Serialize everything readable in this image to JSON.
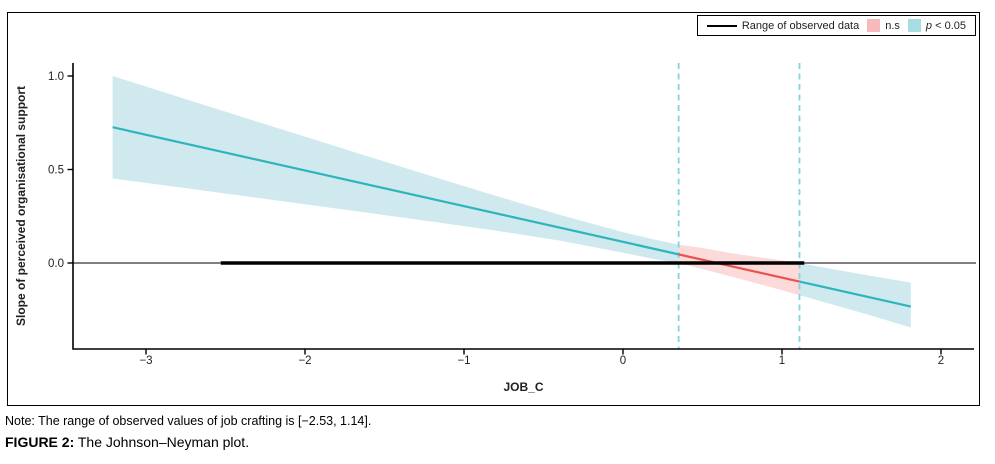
{
  "legend": {
    "items": [
      {
        "label": "Range of observed data",
        "swatch": "line",
        "swatch_color": "#000000"
      },
      {
        "label": "n.s",
        "swatch": "box",
        "swatch_color": "#f7b9b9"
      },
      {
        "label_italic": "p",
        "label": " < 0.05",
        "swatch": "box",
        "swatch_color": "#a6dde3"
      }
    ]
  },
  "chart_data": {
    "type": "line",
    "title": "",
    "xlabel": "JOB_C",
    "ylabel": "Slope of perceived organisational support",
    "xlim": [
      -3.46,
      2.22
    ],
    "ylim": [
      -0.46,
      1.07
    ],
    "grid": false,
    "legend_position": "top-right",
    "x_ticks": [
      {
        "value": -3,
        "label": "−3"
      },
      {
        "value": -2,
        "label": "−2"
      },
      {
        "value": -1,
        "label": "−1"
      },
      {
        "value": 0,
        "label": "0"
      },
      {
        "value": 1,
        "label": "1"
      },
      {
        "value": 2,
        "label": "2"
      }
    ],
    "y_ticks": [
      {
        "value": 0,
        "label": "0.0"
      },
      {
        "value": 0.5,
        "label": "0.5"
      },
      {
        "value": 1,
        "label": "1.0"
      }
    ],
    "regression_line": {
      "slope": -0.191,
      "intercept": 0.113,
      "x_start": -3.21,
      "x_end": 1.81
    },
    "confidence_band": {
      "x": [
        -3.21,
        -2.8,
        -2.4,
        -2.0,
        -1.6,
        -1.2,
        -0.8,
        -0.4,
        0.0,
        0.2,
        0.35,
        0.5,
        0.7,
        0.9,
        1.11,
        1.3,
        1.5,
        1.81
      ],
      "lower": [
        0.452,
        0.406,
        0.36,
        0.314,
        0.268,
        0.221,
        0.173,
        0.12,
        0.055,
        0.02,
        0.0,
        -0.033,
        -0.077,
        -0.122,
        -0.172,
        -0.218,
        -0.266,
        -0.345
      ],
      "upper": [
        1.0,
        0.89,
        0.782,
        0.676,
        0.569,
        0.463,
        0.359,
        0.258,
        0.165,
        0.125,
        0.098,
        0.08,
        0.05,
        0.026,
        0.0,
        -0.03,
        -0.06,
        -0.105
      ]
    },
    "jn_boundaries": {
      "lower": 0.35,
      "upper": 1.11
    },
    "observed_range": {
      "min": -2.53,
      "max": 1.14,
      "y": 0
    },
    "zero_reference_line": 0,
    "colors": {
      "significant_line": "#2eb4bd",
      "significant_band": "#cfe9ee",
      "ns_line": "#e7534f",
      "ns_band": "#fcdada",
      "jn_dashed_line": "#85d3db",
      "observed_range_line": "#000000",
      "axis": "#000000",
      "tick_text": "#1f1f1f"
    }
  },
  "note": {
    "text": "Note: The range of observed values of job crafting is [−2.53, 1.14]."
  },
  "caption": {
    "prefix": "FIGURE 2:",
    "text": "The Johnson–Neyman plot."
  }
}
